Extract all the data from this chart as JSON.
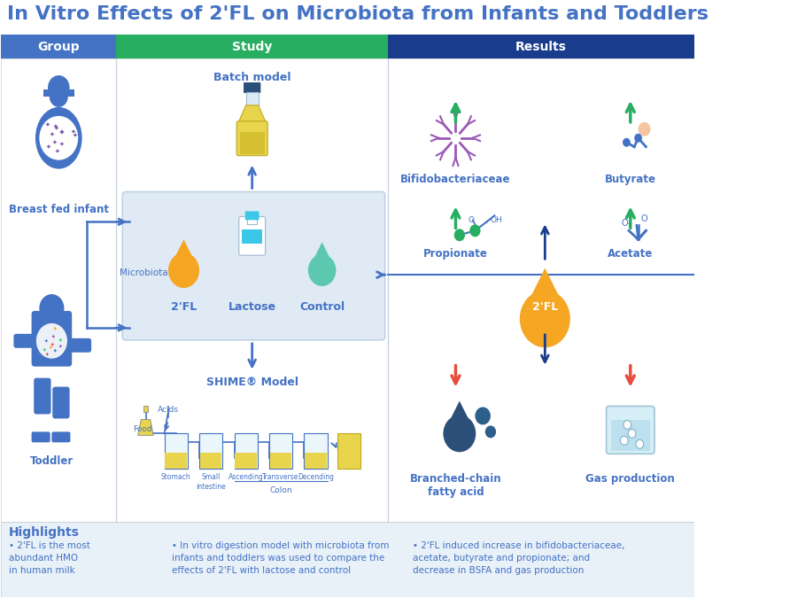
{
  "title": "In Vitro Effects of 2'FL on Microbiota from Infants and Toddlers",
  "title_color": "#4472C4",
  "title_fontsize": 16,
  "header_group": "Group",
  "header_study": "Study",
  "header_results": "Results",
  "header_bg_group": "#4472C4",
  "header_bg_study": "#27AE60",
  "header_bg_results": "#1A3C8C",
  "bg_color": "#FFFFFF",
  "panel_bg": "#E8F0F8",
  "highlight_bg": "#E8F0F8",
  "blue_color": "#4472C4",
  "dark_blue": "#1A3C8C",
  "green_arrow": "#27AE60",
  "red_arrow": "#E74C3C",
  "orange_drop": "#F5A623",
  "teal_drop": "#5DC8B0",
  "dark_navy_drop": "#2C4F7A",
  "yellow_vessel": "#E8D44D",
  "highlights_title": "Highlights",
  "highlight1": "2'FL is the most\nabundant HMO\nin human milk",
  "highlight2": "In vitro digestion model with microbiota from\ninfants and toddlers was used to compare the\neffects of 2'FL with lactose and control",
  "highlight3": "2'FL induced increase in bifidobacteriaceae,\nacetate, butyrate and propionate; and\ndecrease in BSFA and gas production",
  "label_breast": "Breast fed infant",
  "label_toddler": "Toddler",
  "label_microbiota": "Microbiota",
  "label_batch": "Batch model",
  "label_2fl": "2'FL",
  "label_lactose": "Lactose",
  "label_control": "Control",
  "label_shime": "SHIME® Model",
  "label_bifido": "Bifidobacteriaceae",
  "label_butyrate": "Butyrate",
  "label_propionate": "Propionate",
  "label_acetate": "Acetate",
  "label_bcfa": "Branched-chain\nfatty acid",
  "label_gas": "Gas production",
  "label_2fl_center": "2'FL"
}
